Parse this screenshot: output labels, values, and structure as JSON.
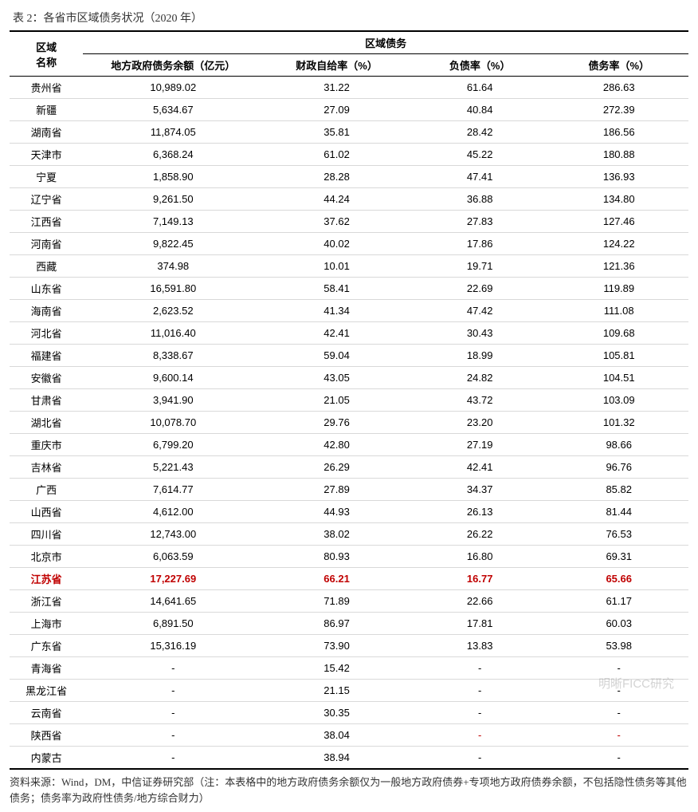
{
  "title": "表 2：各省市区域债务状况（2020 年）",
  "header": {
    "region": "区域\n名称",
    "group": "区域债务",
    "cols": [
      "地方政府债务余额（亿元）",
      "财政自给率（%）",
      "负债率（%）",
      "债务率（%）"
    ]
  },
  "highlight_region": "江苏省",
  "highlight_color": "#c00000",
  "col_widths": [
    "90px",
    "220px",
    "180px",
    "170px",
    "170px"
  ],
  "border_color": "#d9d9d9",
  "rows": [
    {
      "region": "贵州省",
      "debt": "10,989.02",
      "self": "31.22",
      "liab": "61.64",
      "ratio": "286.63"
    },
    {
      "region": "新疆",
      "debt": "5,634.67",
      "self": "27.09",
      "liab": "40.84",
      "ratio": "272.39"
    },
    {
      "region": "湖南省",
      "debt": "11,874.05",
      "self": "35.81",
      "liab": "28.42",
      "ratio": "186.56"
    },
    {
      "region": "天津市",
      "debt": "6,368.24",
      "self": "61.02",
      "liab": "45.22",
      "ratio": "180.88"
    },
    {
      "region": "宁夏",
      "debt": "1,858.90",
      "self": "28.28",
      "liab": "47.41",
      "ratio": "136.93"
    },
    {
      "region": "辽宁省",
      "debt": "9,261.50",
      "self": "44.24",
      "liab": "36.88",
      "ratio": "134.80"
    },
    {
      "region": "江西省",
      "debt": "7,149.13",
      "self": "37.62",
      "liab": "27.83",
      "ratio": "127.46"
    },
    {
      "region": "河南省",
      "debt": "9,822.45",
      "self": "40.02",
      "liab": "17.86",
      "ratio": "124.22"
    },
    {
      "region": "西藏",
      "debt": "374.98",
      "self": "10.01",
      "liab": "19.71",
      "ratio": "121.36"
    },
    {
      "region": "山东省",
      "debt": "16,591.80",
      "self": "58.41",
      "liab": "22.69",
      "ratio": "119.89"
    },
    {
      "region": "海南省",
      "debt": "2,623.52",
      "self": "41.34",
      "liab": "47.42",
      "ratio": "111.08"
    },
    {
      "region": "河北省",
      "debt": "11,016.40",
      "self": "42.41",
      "liab": "30.43",
      "ratio": "109.68"
    },
    {
      "region": "福建省",
      "debt": "8,338.67",
      "self": "59.04",
      "liab": "18.99",
      "ratio": "105.81"
    },
    {
      "region": "安徽省",
      "debt": "9,600.14",
      "self": "43.05",
      "liab": "24.82",
      "ratio": "104.51"
    },
    {
      "region": "甘肃省",
      "debt": "3,941.90",
      "self": "21.05",
      "liab": "43.72",
      "ratio": "103.09"
    },
    {
      "region": "湖北省",
      "debt": "10,078.70",
      "self": "29.76",
      "liab": "23.20",
      "ratio": "101.32"
    },
    {
      "region": "重庆市",
      "debt": "6,799.20",
      "self": "42.80",
      "liab": "27.19",
      "ratio": "98.66"
    },
    {
      "region": "吉林省",
      "debt": "5,221.43",
      "self": "26.29",
      "liab": "42.41",
      "ratio": "96.76"
    },
    {
      "region": "广西",
      "debt": "7,614.77",
      "self": "27.89",
      "liab": "34.37",
      "ratio": "85.82"
    },
    {
      "region": "山西省",
      "debt": "4,612.00",
      "self": "44.93",
      "liab": "26.13",
      "ratio": "81.44"
    },
    {
      "region": "四川省",
      "debt": "12,743.00",
      "self": "38.02",
      "liab": "26.22",
      "ratio": "76.53"
    },
    {
      "region": "北京市",
      "debt": "6,063.59",
      "self": "80.93",
      "liab": "16.80",
      "ratio": "69.31"
    },
    {
      "region": "江苏省",
      "debt": "17,227.69",
      "self": "66.21",
      "liab": "16.77",
      "ratio": "65.66"
    },
    {
      "region": "浙江省",
      "debt": "14,641.65",
      "self": "71.89",
      "liab": "22.66",
      "ratio": "61.17"
    },
    {
      "region": "上海市",
      "debt": "6,891.50",
      "self": "86.97",
      "liab": "17.81",
      "ratio": "60.03"
    },
    {
      "region": "广东省",
      "debt": "15,316.19",
      "self": "73.90",
      "liab": "13.83",
      "ratio": "53.98"
    },
    {
      "region": "青海省",
      "debt": "-",
      "self": "15.42",
      "liab": "-",
      "ratio": "-"
    },
    {
      "region": "黑龙江省",
      "debt": "-",
      "self": "21.15",
      "liab": "-",
      "ratio": "-"
    },
    {
      "region": "云南省",
      "debt": "-",
      "self": "30.35",
      "liab": "-",
      "ratio": "-"
    },
    {
      "region": "陕西省",
      "debt": "-",
      "self": "38.04",
      "liab": "-",
      "ratio": "-",
      "dash_red": true
    },
    {
      "region": "内蒙古",
      "debt": "-",
      "self": "38.94",
      "liab": "-",
      "ratio": "-"
    }
  ],
  "footnote": "资料来源：Wind，DM，中信证券研究部（注：本表格中的地方政府债务余额仅为一般地方政府债券+专项地方政府债券余额，不包括隐性债务等其他债务；债务率为政府性债务/地方综合财力）",
  "watermark": "明晰FICC研究"
}
